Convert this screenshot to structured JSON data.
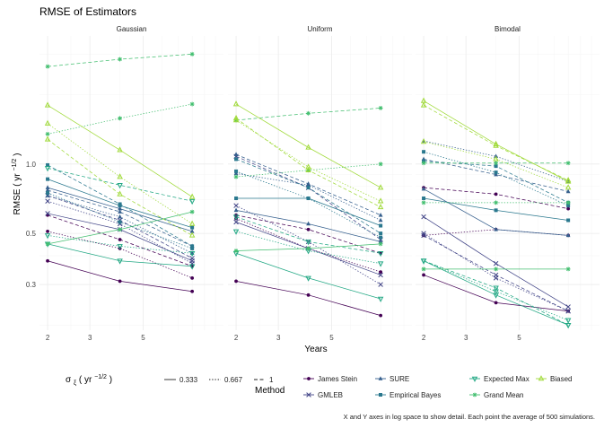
{
  "chart_data": {
    "type": "line",
    "title": "RMSE of Estimators",
    "xlabel": "Years",
    "ylabel": "RMSE",
    "ylabel_unit": "yr",
    "ylabel_exponent": "−1/2",
    "x_scale": "log",
    "y_scale": "log",
    "xlim": [
      1.85,
      10.8
    ],
    "ylim": [
      0.19,
      3.6
    ],
    "x_ticks": [
      2,
      3,
      5
    ],
    "x_tick_labels": [
      "2",
      "3",
      "5"
    ],
    "y_ticks": [
      0.3,
      0.5,
      1.0
    ],
    "y_tick_labels": [
      "0.3",
      "0.5",
      "1.0"
    ],
    "x_values": [
      2,
      4,
      8
    ],
    "grid": true,
    "facets": [
      "Gaussian",
      "Uniform",
      "Bimodal"
    ],
    "methods": [
      {
        "name": "James Stein",
        "color": "#440154",
        "marker": "circle"
      },
      {
        "name": "GMLEB",
        "color": "#414487",
        "marker": "x"
      },
      {
        "name": "SURE",
        "color": "#355f8d",
        "marker": "triangle-up"
      },
      {
        "name": "Empirical Bayes",
        "color": "#2a788e",
        "marker": "square"
      },
      {
        "name": "Expected Max",
        "color": "#22a884",
        "marker": "triangle-down"
      },
      {
        "name": "Grand Mean",
        "color": "#44bf70",
        "marker": "asterisk"
      },
      {
        "name": "Biased",
        "color": "#a0da39",
        "marker": "triangle-up-open"
      }
    ],
    "sigma_levels": [
      {
        "label": "0.333",
        "dash": "solid"
      },
      {
        "label": "0.667",
        "dash": "dotted"
      },
      {
        "label": "1",
        "dash": "dashed"
      }
    ],
    "series": [
      {
        "facet": "Gaussian",
        "method": "James Stein",
        "sigma": "0.333",
        "values": [
          0.38,
          0.31,
          0.28
        ]
      },
      {
        "facet": "Gaussian",
        "method": "James Stein",
        "sigma": "0.667",
        "values": [
          0.51,
          0.43,
          0.32
        ]
      },
      {
        "facet": "Gaussian",
        "method": "James Stein",
        "sigma": "1",
        "values": [
          0.6,
          0.47,
          0.36
        ]
      },
      {
        "facet": "Gaussian",
        "method": "GMLEB",
        "sigma": "0.333",
        "values": [
          0.61,
          0.52,
          0.38
        ]
      },
      {
        "facet": "Gaussian",
        "method": "GMLEB",
        "sigma": "0.667",
        "values": [
          0.69,
          0.55,
          0.37
        ]
      },
      {
        "facet": "Gaussian",
        "method": "GMLEB",
        "sigma": "1",
        "values": [
          0.73,
          0.57,
          0.39
        ]
      },
      {
        "facet": "Gaussian",
        "method": "SURE",
        "sigma": "0.333",
        "values": [
          0.79,
          0.64,
          0.51
        ]
      },
      {
        "facet": "Gaussian",
        "method": "SURE",
        "sigma": "0.667",
        "values": [
          0.73,
          0.59,
          0.41
        ]
      },
      {
        "facet": "Gaussian",
        "method": "SURE",
        "sigma": "1",
        "values": [
          0.77,
          0.62,
          0.44
        ]
      },
      {
        "facet": "Gaussian",
        "method": "Empirical Bayes",
        "sigma": "0.333",
        "values": [
          0.86,
          0.66,
          0.53
        ]
      },
      {
        "facet": "Gaussian",
        "method": "Empirical Bayes",
        "sigma": "0.667",
        "values": [
          0.75,
          0.56,
          0.43
        ]
      },
      {
        "facet": "Gaussian",
        "method": "Empirical Bayes",
        "sigma": "1",
        "values": [
          0.99,
          0.67,
          0.44
        ]
      },
      {
        "facet": "Gaussian",
        "method": "Expected Max",
        "sigma": "0.333",
        "values": [
          0.45,
          0.38,
          0.36
        ]
      },
      {
        "facet": "Gaussian",
        "method": "Expected Max",
        "sigma": "0.667",
        "values": [
          0.49,
          0.44,
          0.41
        ]
      },
      {
        "facet": "Gaussian",
        "method": "Expected Max",
        "sigma": "1",
        "values": [
          0.96,
          0.81,
          0.69
        ]
      },
      {
        "facet": "Gaussian",
        "method": "Grand Mean",
        "sigma": "0.333",
        "values": [
          0.45,
          0.52,
          0.62
        ]
      },
      {
        "facet": "Gaussian",
        "method": "Grand Mean",
        "sigma": "0.667",
        "values": [
          1.35,
          1.58,
          1.82
        ]
      },
      {
        "facet": "Gaussian",
        "method": "Grand Mean",
        "sigma": "1",
        "values": [
          2.65,
          2.85,
          3.0
        ]
      },
      {
        "facet": "Gaussian",
        "method": "Biased",
        "sigma": "0.333",
        "values": [
          1.8,
          1.15,
          0.72
        ]
      },
      {
        "facet": "Gaussian",
        "method": "Biased",
        "sigma": "0.667",
        "values": [
          1.5,
          0.88,
          0.55
        ]
      },
      {
        "facet": "Gaussian",
        "method": "Biased",
        "sigma": "1",
        "values": [
          1.28,
          0.74,
          0.49
        ]
      },
      {
        "facet": "Uniform",
        "method": "James Stein",
        "sigma": "0.333",
        "values": [
          0.31,
          0.27,
          0.22
        ]
      },
      {
        "facet": "Uniform",
        "method": "James Stein",
        "sigma": "0.667",
        "values": [
          0.58,
          0.43,
          0.34
        ]
      },
      {
        "facet": "Uniform",
        "method": "James Stein",
        "sigma": "1",
        "values": [
          0.6,
          0.52,
          0.41
        ]
      },
      {
        "facet": "Uniform",
        "method": "GMLEB",
        "sigma": "0.333",
        "values": [
          0.56,
          0.43,
          0.33
        ]
      },
      {
        "facet": "Uniform",
        "method": "GMLEB",
        "sigma": "0.667",
        "values": [
          0.66,
          0.46,
          0.3
        ]
      },
      {
        "facet": "Uniform",
        "method": "GMLEB",
        "sigma": "1",
        "values": [
          1.08,
          0.79,
          0.47
        ]
      },
      {
        "facet": "Uniform",
        "method": "SURE",
        "sigma": "0.333",
        "values": [
          0.63,
          0.55,
          0.46
        ]
      },
      {
        "facet": "Uniform",
        "method": "SURE",
        "sigma": "0.667",
        "values": [
          0.91,
          0.81,
          0.57
        ]
      },
      {
        "facet": "Uniform",
        "method": "SURE",
        "sigma": "1",
        "values": [
          1.1,
          0.82,
          0.6
        ]
      },
      {
        "facet": "Uniform",
        "method": "Empirical Bayes",
        "sigma": "0.333",
        "values": [
          0.71,
          0.71,
          0.54
        ]
      },
      {
        "facet": "Uniform",
        "method": "Empirical Bayes",
        "sigma": "0.667",
        "values": [
          0.93,
          0.71,
          0.48
        ]
      },
      {
        "facet": "Uniform",
        "method": "Empirical Bayes",
        "sigma": "1",
        "values": [
          1.05,
          0.79,
          0.5
        ]
      },
      {
        "facet": "Uniform",
        "method": "Expected Max",
        "sigma": "0.333",
        "values": [
          0.41,
          0.32,
          0.26
        ]
      },
      {
        "facet": "Uniform",
        "method": "Expected Max",
        "sigma": "0.667",
        "values": [
          0.51,
          0.42,
          0.37
        ]
      },
      {
        "facet": "Uniform",
        "method": "Expected Max",
        "sigma": "1",
        "values": [
          0.59,
          0.46,
          0.41
        ]
      },
      {
        "facet": "Uniform",
        "method": "Grand Mean",
        "sigma": "0.333",
        "values": [
          0.42,
          0.43,
          0.45
        ]
      },
      {
        "facet": "Uniform",
        "method": "Grand Mean",
        "sigma": "0.667",
        "values": [
          0.88,
          0.94,
          1.0
        ]
      },
      {
        "facet": "Uniform",
        "method": "Grand Mean",
        "sigma": "1",
        "values": [
          1.55,
          1.66,
          1.75
        ]
      },
      {
        "facet": "Uniform",
        "method": "Biased",
        "sigma": "0.333",
        "values": [
          1.82,
          1.18,
          0.79
        ]
      },
      {
        "facet": "Uniform",
        "method": "Biased",
        "sigma": "0.667",
        "values": [
          1.55,
          0.97,
          0.69
        ]
      },
      {
        "facet": "Uniform",
        "method": "Biased",
        "sigma": "1",
        "values": [
          1.58,
          0.94,
          0.65
        ]
      },
      {
        "facet": "Bimodal",
        "method": "James Stein",
        "sigma": "0.333",
        "values": [
          0.33,
          0.25,
          0.23
        ]
      },
      {
        "facet": "Bimodal",
        "method": "James Stein",
        "sigma": "0.667",
        "values": [
          0.49,
          0.52,
          0.49
        ]
      },
      {
        "facet": "Bimodal",
        "method": "James Stein",
        "sigma": "1",
        "values": [
          0.79,
          0.74,
          0.64
        ]
      },
      {
        "facet": "Bimodal",
        "method": "GMLEB",
        "sigma": "0.333",
        "values": [
          0.59,
          0.37,
          0.24
        ]
      },
      {
        "facet": "Bimodal",
        "method": "GMLEB",
        "sigma": "0.667",
        "values": [
          0.5,
          0.32,
          0.23
        ]
      },
      {
        "facet": "Bimodal",
        "method": "GMLEB",
        "sigma": "1",
        "values": [
          0.49,
          0.33,
          0.23
        ]
      },
      {
        "facet": "Bimodal",
        "method": "SURE",
        "sigma": "0.333",
        "values": [
          0.78,
          0.52,
          0.49
        ]
      },
      {
        "facet": "Bimodal",
        "method": "SURE",
        "sigma": "0.667",
        "values": [
          1.26,
          1.08,
          0.84
        ]
      },
      {
        "facet": "Bimodal",
        "method": "SURE",
        "sigma": "1",
        "values": [
          1.05,
          0.9,
          0.76
        ]
      },
      {
        "facet": "Bimodal",
        "method": "Empirical Bayes",
        "sigma": "0.333",
        "values": [
          0.71,
          0.63,
          0.57
        ]
      },
      {
        "facet": "Bimodal",
        "method": "Empirical Bayes",
        "sigma": "0.667",
        "values": [
          1.13,
          0.92,
          0.66
        ]
      },
      {
        "facet": "Bimodal",
        "method": "Empirical Bayes",
        "sigma": "1",
        "values": [
          1.03,
          0.98,
          0.68
        ]
      },
      {
        "facet": "Bimodal",
        "method": "Expected Max",
        "sigma": "0.333",
        "values": [
          0.38,
          0.27,
          0.2
        ]
      },
      {
        "facet": "Bimodal",
        "method": "Expected Max",
        "sigma": "0.667",
        "values": [
          0.38,
          0.28,
          0.21
        ]
      },
      {
        "facet": "Bimodal",
        "method": "Expected Max",
        "sigma": "1",
        "values": [
          0.38,
          0.29,
          0.2
        ]
      },
      {
        "facet": "Bimodal",
        "method": "Grand Mean",
        "sigma": "0.333",
        "values": [
          0.35,
          0.35,
          0.35
        ]
      },
      {
        "facet": "Bimodal",
        "method": "Grand Mean",
        "sigma": "0.667",
        "values": [
          0.68,
          0.68,
          0.68
        ]
      },
      {
        "facet": "Bimodal",
        "method": "Grand Mean",
        "sigma": "1",
        "values": [
          1.01,
          1.01,
          1.01
        ]
      },
      {
        "facet": "Bimodal",
        "method": "Biased",
        "sigma": "0.333",
        "values": [
          1.88,
          1.22,
          0.84
        ]
      },
      {
        "facet": "Bimodal",
        "method": "Biased",
        "sigma": "0.667",
        "values": [
          1.25,
          1.05,
          0.79
        ]
      },
      {
        "facet": "Bimodal",
        "method": "Biased",
        "sigma": "1",
        "values": [
          1.8,
          1.2,
          0.85
        ]
      }
    ],
    "legend": {
      "sigma_symbol": "σ",
      "sigma_subscript": "ξ",
      "sigma_unit": "yr",
      "sigma_exponent": "−1/2",
      "method_title": "Method",
      "placement": "bottom"
    },
    "caption": "X and Y axes in log space to show detail. Each point the average of 500 simulations."
  }
}
